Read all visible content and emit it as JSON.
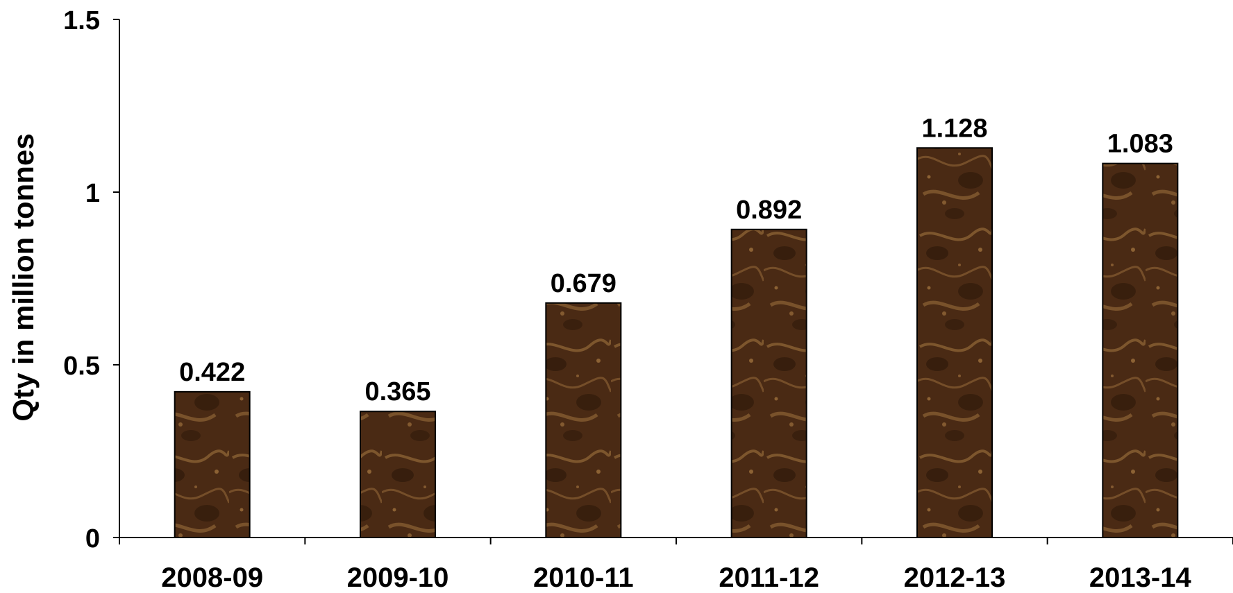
{
  "chart_data": {
    "type": "bar",
    "title": "",
    "xlabel": "",
    "ylabel": "Qty in million tonnes",
    "categories": [
      "2008-09",
      "2009-10",
      "2010-11",
      "2011-12",
      "2012-13",
      "2013-14"
    ],
    "values": [
      0.422,
      0.365,
      0.679,
      0.892,
      1.128,
      1.083
    ],
    "data_labels": [
      "0.422",
      "0.365",
      "0.679",
      "0.892",
      "1.128",
      "1.083"
    ],
    "ylim": [
      0,
      1.5
    ],
    "yticks": [
      0,
      0.5,
      1,
      1.5
    ],
    "ytick_labels": [
      "0",
      "0.5",
      "1",
      "1.5"
    ],
    "grid": false,
    "legend": "none",
    "colors": {
      "bar_fill": "#4a2a14",
      "bar_light": "#a87a42",
      "bar_dark": "#2a1508",
      "bar_edge": "#000000",
      "axis": "#000000"
    }
  }
}
